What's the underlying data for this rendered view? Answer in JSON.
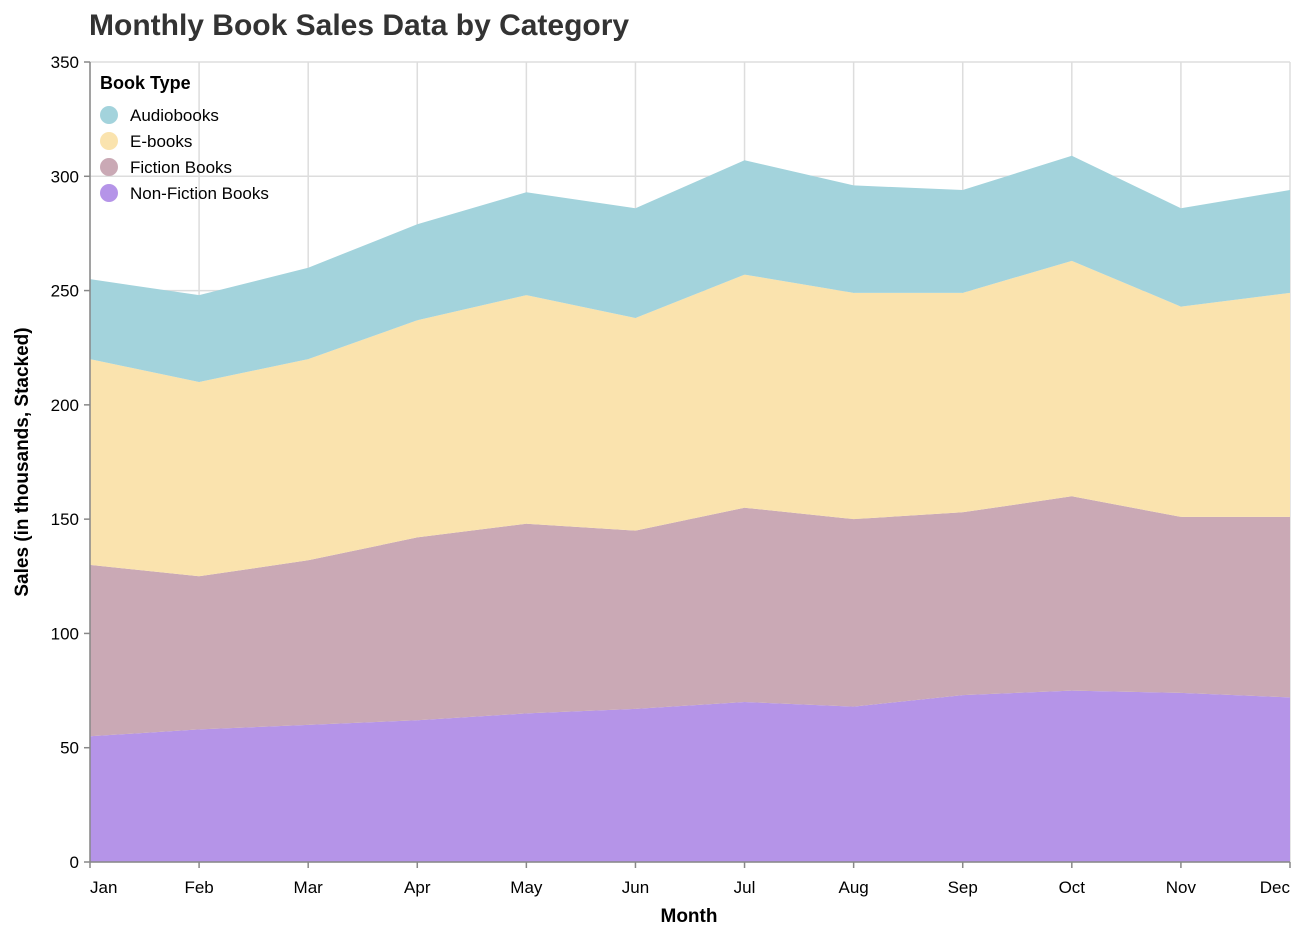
{
  "chart_data": {
    "type": "area",
    "stacked": true,
    "title": "Monthly Book Sales Data by Category",
    "xlabel": "Month",
    "ylabel": "Sales (in thousands, Stacked)",
    "ylim": [
      0,
      350
    ],
    "yticks": [
      0,
      50,
      100,
      150,
      200,
      250,
      300,
      350
    ],
    "grid": true,
    "legend": {
      "title": "Book Type",
      "placement": "top-left"
    },
    "categories": [
      "Jan",
      "Feb",
      "Mar",
      "Apr",
      "May",
      "Jun",
      "Jul",
      "Aug",
      "Sep",
      "Oct",
      "Nov",
      "Dec"
    ],
    "series": [
      {
        "name": "Non-Fiction Books",
        "color": "#b594e8",
        "values": [
          55,
          58,
          60,
          62,
          65,
          67,
          70,
          68,
          73,
          75,
          74,
          72
        ]
      },
      {
        "name": "Fiction Books",
        "color": "#caa9b5",
        "values": [
          75,
          67,
          72,
          80,
          83,
          78,
          85,
          82,
          80,
          85,
          77,
          79
        ]
      },
      {
        "name": "E-books",
        "color": "#fae3ae",
        "values": [
          90,
          85,
          88,
          95,
          100,
          93,
          102,
          99,
          96,
          103,
          92,
          98
        ]
      },
      {
        "name": "Audiobooks",
        "color": "#a3d3dc",
        "values": [
          35,
          38,
          40,
          42,
          45,
          48,
          50,
          47,
          45,
          46,
          43,
          45
        ]
      }
    ],
    "legend_order": [
      "Audiobooks",
      "E-books",
      "Fiction Books",
      "Non-Fiction Books"
    ]
  }
}
